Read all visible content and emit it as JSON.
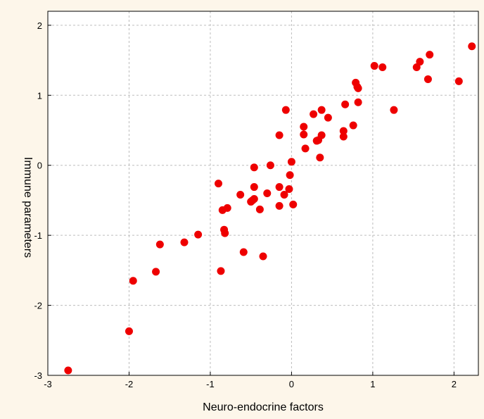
{
  "chart_data": {
    "type": "scatter",
    "title": "",
    "xlabel": "Neuro-endocrine factors",
    "ylabel": "Immune parameters",
    "xlim": [
      -3,
      2.3
    ],
    "ylim": [
      -3,
      2.2
    ],
    "xticks": [
      -3,
      -2,
      -1,
      0,
      1,
      2
    ],
    "yticks": [
      -3,
      -2,
      -1,
      0,
      1,
      2
    ],
    "xtick_labels": [
      "-3",
      "-2",
      "-1",
      "0",
      "1",
      "2"
    ],
    "ytick_labels": [
      "-3",
      "-2",
      "-1",
      "0",
      "1",
      "2"
    ],
    "grid": true,
    "marker_color": "#ee0000",
    "background": "#fdf6ea",
    "series": [
      {
        "points": [
          {
            "x": -2.75,
            "y": -2.93
          },
          {
            "x": -2.0,
            "y": -2.37
          },
          {
            "x": -1.95,
            "y": -1.65
          },
          {
            "x": -1.67,
            "y": -1.52
          },
          {
            "x": -1.62,
            "y": -1.13
          },
          {
            "x": -1.32,
            "y": -1.1
          },
          {
            "x": -1.15,
            "y": -0.99
          },
          {
            "x": -0.9,
            "y": -0.26
          },
          {
            "x": -0.87,
            "y": -1.51
          },
          {
            "x": -0.85,
            "y": -0.64
          },
          {
            "x": -0.83,
            "y": -0.92
          },
          {
            "x": -0.82,
            "y": -0.97
          },
          {
            "x": -0.79,
            "y": -0.61
          },
          {
            "x": -0.63,
            "y": -0.42
          },
          {
            "x": -0.59,
            "y": -1.24
          },
          {
            "x": -0.5,
            "y": -0.52
          },
          {
            "x": -0.48,
            "y": -0.5
          },
          {
            "x": -0.46,
            "y": -0.48
          },
          {
            "x": -0.46,
            "y": -0.31
          },
          {
            "x": -0.46,
            "y": -0.03
          },
          {
            "x": -0.39,
            "y": -0.63
          },
          {
            "x": -0.35,
            "y": -1.3
          },
          {
            "x": -0.3,
            "y": -0.4
          },
          {
            "x": -0.26,
            "y": 0.0
          },
          {
            "x": -0.15,
            "y": -0.58
          },
          {
            "x": -0.15,
            "y": -0.31
          },
          {
            "x": -0.15,
            "y": 0.43
          },
          {
            "x": -0.09,
            "y": -0.42
          },
          {
            "x": -0.07,
            "y": 0.79
          },
          {
            "x": -0.03,
            "y": -0.34
          },
          {
            "x": -0.02,
            "y": -0.14
          },
          {
            "x": 0.0,
            "y": 0.05
          },
          {
            "x": 0.02,
            "y": -0.56
          },
          {
            "x": 0.15,
            "y": 0.55
          },
          {
            "x": 0.15,
            "y": 0.44
          },
          {
            "x": 0.17,
            "y": 0.24
          },
          {
            "x": 0.27,
            "y": 0.73
          },
          {
            "x": 0.31,
            "y": 0.35
          },
          {
            "x": 0.33,
            "y": 0.36
          },
          {
            "x": 0.35,
            "y": 0.11
          },
          {
            "x": 0.37,
            "y": 0.79
          },
          {
            "x": 0.37,
            "y": 0.43
          },
          {
            "x": 0.45,
            "y": 0.68
          },
          {
            "x": 0.64,
            "y": 0.49
          },
          {
            "x": 0.64,
            "y": 0.41
          },
          {
            "x": 0.66,
            "y": 0.87
          },
          {
            "x": 0.76,
            "y": 0.57
          },
          {
            "x": 0.79,
            "y": 1.18
          },
          {
            "x": 0.81,
            "y": 1.12
          },
          {
            "x": 0.82,
            "y": 1.1
          },
          {
            "x": 0.82,
            "y": 0.9
          },
          {
            "x": 1.02,
            "y": 1.42
          },
          {
            "x": 1.12,
            "y": 1.4
          },
          {
            "x": 1.26,
            "y": 0.79
          },
          {
            "x": 1.54,
            "y": 1.4
          },
          {
            "x": 1.58,
            "y": 1.48
          },
          {
            "x": 1.68,
            "y": 1.23
          },
          {
            "x": 1.7,
            "y": 1.58
          },
          {
            "x": 2.06,
            "y": 1.2
          },
          {
            "x": 2.22,
            "y": 1.7
          }
        ]
      }
    ]
  }
}
